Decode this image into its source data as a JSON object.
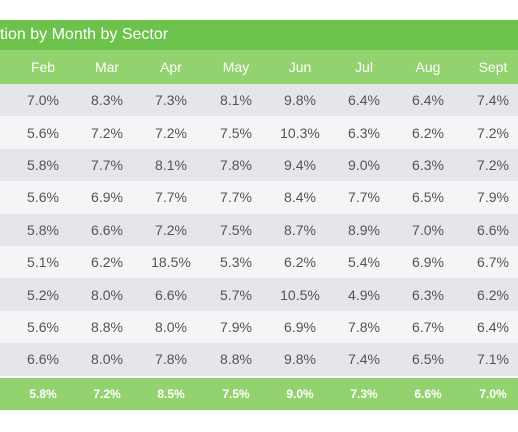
{
  "title": "tion by Month by Sector",
  "chart_data": {
    "type": "table",
    "title": "tion by Month by Sector",
    "columns": [
      "Feb",
      "Mar",
      "Apr",
      "May",
      "Jun",
      "Jul",
      "Aug",
      "Sept"
    ],
    "rows": [
      [
        "7.0%",
        "8.3%",
        "7.3%",
        "8.1%",
        "9.8%",
        "6.4%",
        "6.4%",
        "7.4%"
      ],
      [
        "5.6%",
        "7.2%",
        "7.2%",
        "7.5%",
        "10.3%",
        "6.3%",
        "6.2%",
        "7.2%"
      ],
      [
        "5.8%",
        "7.7%",
        "8.1%",
        "7.8%",
        "9.4%",
        "9.0%",
        "6.3%",
        "7.2%"
      ],
      [
        "5.6%",
        "6.9%",
        "7.7%",
        "7.7%",
        "8.4%",
        "7.7%",
        "6.5%",
        "7.9%"
      ],
      [
        "5.8%",
        "6.6%",
        "7.2%",
        "7.5%",
        "8.7%",
        "8.9%",
        "7.0%",
        "6.6%"
      ],
      [
        "5.1%",
        "6.2%",
        "18.5%",
        "5.3%",
        "6.2%",
        "5.4%",
        "6.9%",
        "6.7%"
      ],
      [
        "5.2%",
        "8.0%",
        "6.6%",
        "5.7%",
        "10.5%",
        "4.9%",
        "6.3%",
        "6.2%"
      ],
      [
        "5.6%",
        "8.8%",
        "8.0%",
        "7.9%",
        "6.9%",
        "7.8%",
        "6.7%",
        "6.4%"
      ],
      [
        "6.6%",
        "8.0%",
        "7.8%",
        "8.8%",
        "9.8%",
        "7.4%",
        "6.5%",
        "7.1%"
      ]
    ],
    "totals": [
      "5.8%",
      "7.2%",
      "8.5%",
      "7.5%",
      "9.0%",
      "7.3%",
      "6.6%",
      "7.0%"
    ]
  },
  "colors": {
    "title_bg": "#6cc24a",
    "header_bg": "#93d36f",
    "row_odd": "#e5e5ea",
    "row_even": "#f5f5f7",
    "text": "#555555"
  }
}
